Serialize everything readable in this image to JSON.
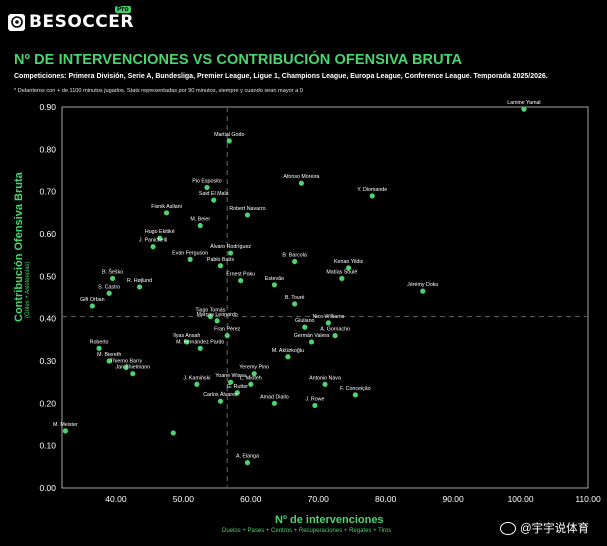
{
  "brand": {
    "name": "BESOCCER",
    "tag": "Pro"
  },
  "watermark": {
    "text": "@宇宇说体育",
    "icon": "weibo-icon"
  },
  "colors": {
    "accent": "#4cd46f",
    "background": "#000000",
    "reference_line": "#555555"
  },
  "chart_data": {
    "type": "scatter",
    "title": "Nº DE INTERVENCIONES VS CONTRIBUCIÓN OFENSIVA BRUTA",
    "subtitle": "Competiciones: Primera División, Serie A, Bundesliga, Premier League, Ligue 1, Champions League, Europa League, Conference League. Temporada 2025/2026.",
    "note": "* Delanteros con + de 1100 minutos jugados. Stats representadas por 90 minutos, siempre y cuando sean mayor a 0",
    "xlabel": "Nº de intervenciones",
    "xlabel_sub": "Duelos + Pases + Centros + Recuperaciones + Regates + Tiros",
    "ylabel": "Contribución Ofensiva Bruta",
    "ylabel_sub": "(Goles + Asistencias)",
    "xlim": [
      32,
      110
    ],
    "ylim": [
      0,
      0.9
    ],
    "xticks": [
      "40.00",
      "50.00",
      "60.00",
      "70.00",
      "80.00",
      "90.00",
      "100.00",
      "110.00"
    ],
    "yticks": [
      "0.00",
      "0.10",
      "0.20",
      "0.30",
      "0.40",
      "0.50",
      "0.60",
      "0.70",
      "0.80",
      "0.90"
    ],
    "reference_lines": {
      "x": 56.5,
      "y": 0.405
    },
    "grid": false,
    "points": [
      {
        "label": "Lamine Yamal",
        "x": 100.5,
        "y": 0.895
      },
      {
        "label": "Martial Godo",
        "x": 56.8,
        "y": 0.82
      },
      {
        "label": "Afonso Moreira",
        "x": 67.5,
        "y": 0.72
      },
      {
        "label": "Y. Diomande",
        "x": 78.0,
        "y": 0.69
      },
      {
        "label": "Pio Esposito",
        "x": 53.5,
        "y": 0.71
      },
      {
        "label": "Said El Mala",
        "x": 54.5,
        "y": 0.68
      },
      {
        "label": "Fisnik Asllani",
        "x": 47.5,
        "y": 0.65
      },
      {
        "label": "Robert Navarro",
        "x": 59.5,
        "y": 0.645
      },
      {
        "label": "M. Beier",
        "x": 52.5,
        "y": 0.62
      },
      {
        "label": "Hugo Ekitiké",
        "x": 46.5,
        "y": 0.59
      },
      {
        "label": "J. Panichelli",
        "x": 45.5,
        "y": 0.57
      },
      {
        "label": "Álvaro Rodríguez",
        "x": 57.0,
        "y": 0.555
      },
      {
        "label": "Evan Ferguson",
        "x": 51.0,
        "y": 0.54
      },
      {
        "label": "Pablo Batís",
        "x": 55.5,
        "y": 0.525
      },
      {
        "label": "B. Barcola",
        "x": 66.5,
        "y": 0.535
      },
      {
        "label": "Kenan Yildiz",
        "x": 74.5,
        "y": 0.52
      },
      {
        "label": "Matías Soulé",
        "x": 73.5,
        "y": 0.495
      },
      {
        "label": "Jérémy Doku",
        "x": 85.5,
        "y": 0.465
      },
      {
        "label": "B. Šeško",
        "x": 39.5,
        "y": 0.495
      },
      {
        "label": "Ernest Poku",
        "x": 58.5,
        "y": 0.49
      },
      {
        "label": "Estevão",
        "x": 63.5,
        "y": 0.48
      },
      {
        "label": "R. Højlund",
        "x": 43.5,
        "y": 0.475
      },
      {
        "label": "S. Castro",
        "x": 39.0,
        "y": 0.46
      },
      {
        "label": "B. Touré",
        "x": 66.5,
        "y": 0.435
      },
      {
        "label": "Gift Orban",
        "x": 36.5,
        "y": 0.43
      },
      {
        "label": "Tiago Tomás",
        "x": 54.0,
        "y": 0.405
      },
      {
        "label": "Nico Williams",
        "x": 71.5,
        "y": 0.39
      },
      {
        "label": "Marcos Leonardo",
        "x": 55.0,
        "y": 0.395
      },
      {
        "label": "Giuliano",
        "x": 68.0,
        "y": 0.38
      },
      {
        "label": "Fran Pérez",
        "x": 56.5,
        "y": 0.36
      },
      {
        "label": "A. Gornacho",
        "x": 72.5,
        "y": 0.36
      },
      {
        "label": "Ilyas Ansah",
        "x": 50.5,
        "y": 0.345
      },
      {
        "label": "M. Fernández Pardo",
        "x": 52.5,
        "y": 0.33
      },
      {
        "label": "Roberto",
        "x": 37.5,
        "y": 0.33
      },
      {
        "label": "Germán Valera",
        "x": 69.0,
        "y": 0.345
      },
      {
        "label": "M. Aktürkoğlu",
        "x": 65.5,
        "y": 0.31
      },
      {
        "label": "M. Biereth",
        "x": 39.0,
        "y": 0.3
      },
      {
        "label": "Thierno Barry",
        "x": 41.5,
        "y": 0.285
      },
      {
        "label": "Jan Thielmann",
        "x": 42.5,
        "y": 0.27
      },
      {
        "label": "Yeremy Pino",
        "x": 60.5,
        "y": 0.27
      },
      {
        "label": "Yoane Wissa",
        "x": 57.0,
        "y": 0.25
      },
      {
        "label": "L. Mioteh",
        "x": 60.0,
        "y": 0.245
      },
      {
        "label": "J. Kamiński",
        "x": 52.0,
        "y": 0.245
      },
      {
        "label": "Antonio Nava",
        "x": 71.0,
        "y": 0.245
      },
      {
        "label": "G. Rutter",
        "x": 58.0,
        "y": 0.225
      },
      {
        "label": "F. Conceição",
        "x": 75.5,
        "y": 0.22
      },
      {
        "label": "Carlos Álvarez",
        "x": 55.5,
        "y": 0.205
      },
      {
        "label": "Amad Diallo",
        "x": 63.5,
        "y": 0.2
      },
      {
        "label": "J. Rowe",
        "x": 69.5,
        "y": 0.195
      },
      {
        "label": "M. Meister",
        "x": 32.5,
        "y": 0.135
      },
      {
        "label": "",
        "x": 48.5,
        "y": 0.13
      },
      {
        "label": "A. Elanga",
        "x": 59.5,
        "y": 0.06
      }
    ]
  }
}
